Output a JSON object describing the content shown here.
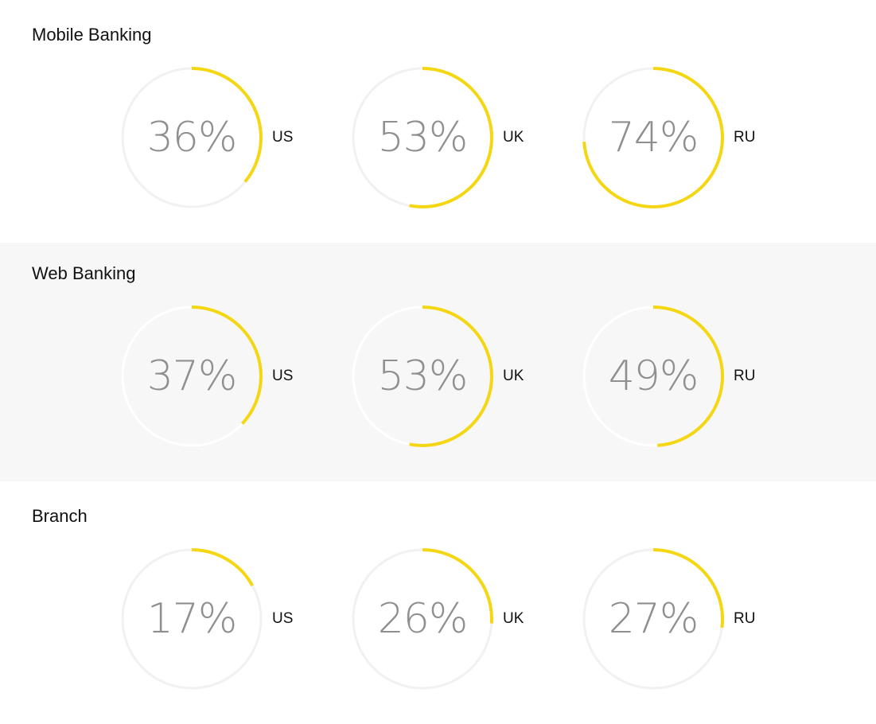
{
  "chart_data": [
    {
      "type": "radial-progress",
      "title": "Mobile Banking",
      "categories": [
        "US",
        "UK",
        "RU"
      ],
      "values": [
        36,
        53,
        74
      ],
      "labels": [
        "36%",
        "53%",
        "74%"
      ],
      "unit": "%",
      "max": 100
    },
    {
      "type": "radial-progress",
      "title": "Web Banking",
      "categories": [
        "US",
        "UK",
        "RU"
      ],
      "values": [
        37,
        53,
        49
      ],
      "labels": [
        "37%",
        "53%",
        "49%"
      ],
      "unit": "%",
      "max": 100
    },
    {
      "type": "radial-progress",
      "title": "Branch",
      "categories": [
        "US",
        "UK",
        "RU"
      ],
      "values": [
        17,
        26,
        27
      ],
      "labels": [
        "17%",
        "26%",
        "27%"
      ],
      "unit": "%",
      "max": 100
    }
  ],
  "colors": {
    "progress": "#f5d612",
    "track": "#f1f1f1",
    "alt_section_background": "#f7f7f7",
    "value_text": "#8f8f8f"
  }
}
